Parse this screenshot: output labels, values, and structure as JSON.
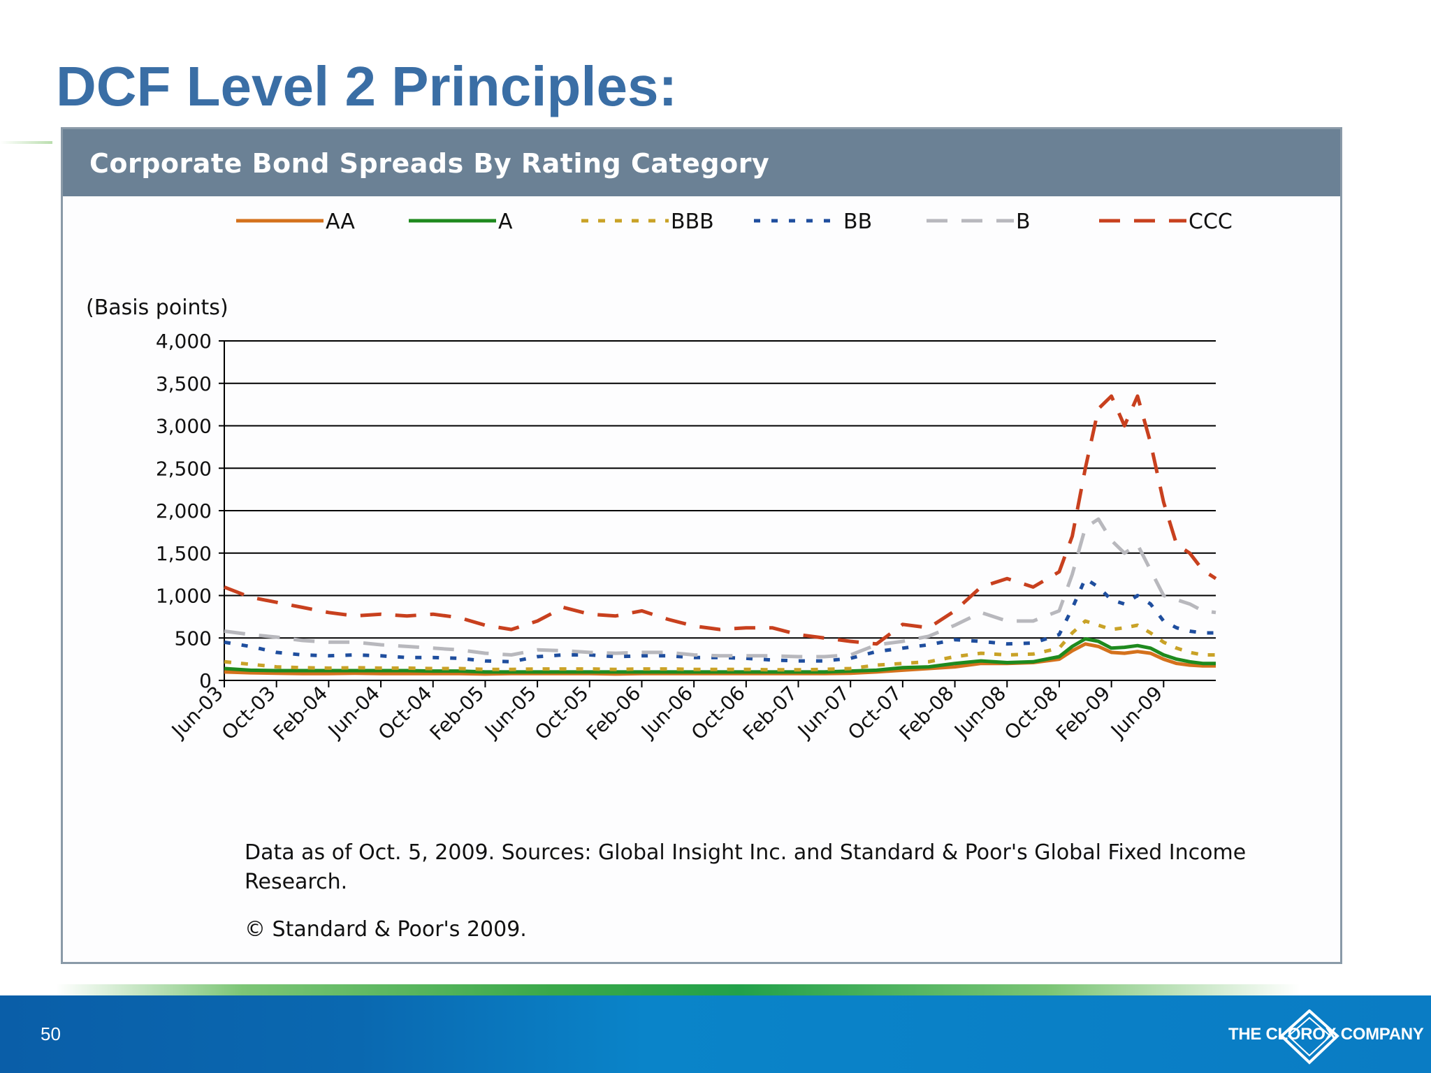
{
  "slide": {
    "title": "DCF Level 2 Principles:",
    "page_number": "50",
    "company": "THE CLOROX COMPANY"
  },
  "figure": {
    "title": "Corporate Bond Spreads By Rating Category",
    "note": "Data as of Oct. 5, 2009. Sources: Global Insight Inc. and Standard & Poor's Global Fixed Income Research.",
    "copyright": "© Standard & Poor's 2009."
  },
  "chart_data": {
    "type": "line",
    "title": "Corporate Bond Spreads By Rating Category",
    "ylabel": "(Basis points)",
    "xlabel": "",
    "ylim": [
      0,
      4000
    ],
    "yticks": [
      0,
      500,
      1000,
      1500,
      2000,
      2500,
      3000,
      3500,
      4000
    ],
    "ytick_labels": [
      "0",
      "500",
      "1,000",
      "1,500",
      "2,000",
      "2,500",
      "3,000",
      "3,500",
      "4,000"
    ],
    "grid": true,
    "legend_position": "top",
    "x_tick_labels": [
      "Jun-03",
      "Oct-03",
      "Feb-04",
      "Jun-04",
      "Oct-04",
      "Feb-05",
      "Jun-05",
      "Oct-05",
      "Feb-06",
      "Jun-06",
      "Oct-06",
      "Feb-07",
      "Jun-07",
      "Oct-07",
      "Feb-08",
      "Jun-08",
      "Oct-08",
      "Feb-09",
      "Jun-09"
    ],
    "x": [
      "2003-06",
      "2003-08",
      "2003-10",
      "2003-12",
      "2004-02",
      "2004-04",
      "2004-06",
      "2004-08",
      "2004-10",
      "2004-12",
      "2005-02",
      "2005-04",
      "2005-06",
      "2005-08",
      "2005-10",
      "2005-12",
      "2006-02",
      "2006-04",
      "2006-06",
      "2006-08",
      "2006-10",
      "2006-12",
      "2007-02",
      "2007-04",
      "2007-06",
      "2007-08",
      "2007-10",
      "2007-12",
      "2008-02",
      "2008-04",
      "2008-06",
      "2008-08",
      "2008-10",
      "2008-11",
      "2008-12",
      "2009-01",
      "2009-02",
      "2009-03",
      "2009-04",
      "2009-05",
      "2009-06",
      "2009-07",
      "2009-08",
      "2009-09",
      "2009-10"
    ],
    "series": [
      {
        "name": "AA",
        "color": "#d4711c",
        "dash": "solid",
        "values": [
          100,
          90,
          85,
          80,
          80,
          85,
          80,
          80,
          80,
          80,
          75,
          80,
          80,
          80,
          80,
          75,
          80,
          80,
          80,
          80,
          80,
          80,
          80,
          80,
          85,
          100,
          120,
          140,
          160,
          200,
          200,
          210,
          250,
          350,
          430,
          400,
          330,
          320,
          340,
          320,
          250,
          200,
          180,
          170,
          170
        ]
      },
      {
        "name": "A",
        "color": "#1e8a1e",
        "dash": "solid",
        "values": [
          140,
          120,
          115,
          115,
          115,
          115,
          115,
          115,
          110,
          110,
          100,
          100,
          100,
          100,
          100,
          100,
          100,
          100,
          100,
          100,
          100,
          100,
          100,
          100,
          110,
          120,
          150,
          160,
          200,
          230,
          210,
          220,
          280,
          400,
          490,
          460,
          380,
          390,
          410,
          380,
          300,
          250,
          220,
          200,
          200
        ]
      },
      {
        "name": "BBB",
        "color": "#c9a227",
        "dash": "dash",
        "values": [
          220,
          190,
          160,
          150,
          145,
          150,
          145,
          145,
          140,
          140,
          130,
          130,
          135,
          135,
          135,
          130,
          135,
          135,
          130,
          130,
          130,
          125,
          125,
          130,
          140,
          180,
          200,
          220,
          280,
          320,
          300,
          310,
          380,
          560,
          700,
          650,
          600,
          620,
          650,
          560,
          450,
          380,
          330,
          300,
          300
        ]
      },
      {
        "name": "BB",
        "color": "#1f4e9e",
        "dash": "dot",
        "values": [
          450,
          400,
          330,
          300,
          290,
          300,
          290,
          270,
          270,
          260,
          230,
          220,
          280,
          300,
          300,
          280,
          290,
          290,
          270,
          270,
          260,
          240,
          230,
          230,
          260,
          340,
          380,
          420,
          480,
          460,
          430,
          440,
          540,
          850,
          1200,
          1100,
          950,
          900,
          1000,
          900,
          700,
          620,
          580,
          560,
          560
        ]
      },
      {
        "name": "B",
        "color": "#b8b8bd",
        "dash": "longdash",
        "values": [
          580,
          540,
          510,
          470,
          450,
          450,
          420,
          400,
          380,
          360,
          320,
          300,
          360,
          350,
          330,
          320,
          330,
          330,
          300,
          290,
          290,
          290,
          280,
          280,
          300,
          420,
          460,
          520,
          650,
          800,
          700,
          700,
          820,
          1250,
          1800,
          1900,
          1650,
          1500,
          1600,
          1300,
          1000,
          950,
          900,
          820,
          800
        ]
      },
      {
        "name": "CCC",
        "color": "#c8401e",
        "dash": "longdash",
        "values": [
          1100,
          980,
          920,
          860,
          800,
          760,
          780,
          760,
          780,
          740,
          650,
          600,
          700,
          860,
          780,
          760,
          820,
          720,
          640,
          600,
          620,
          620,
          540,
          500,
          460,
          430,
          660,
          620,
          820,
          1100,
          1200,
          1100,
          1280,
          1700,
          2500,
          3200,
          3350,
          3000,
          3350,
          2800,
          2100,
          1600,
          1500,
          1300,
          1200
        ]
      }
    ]
  }
}
